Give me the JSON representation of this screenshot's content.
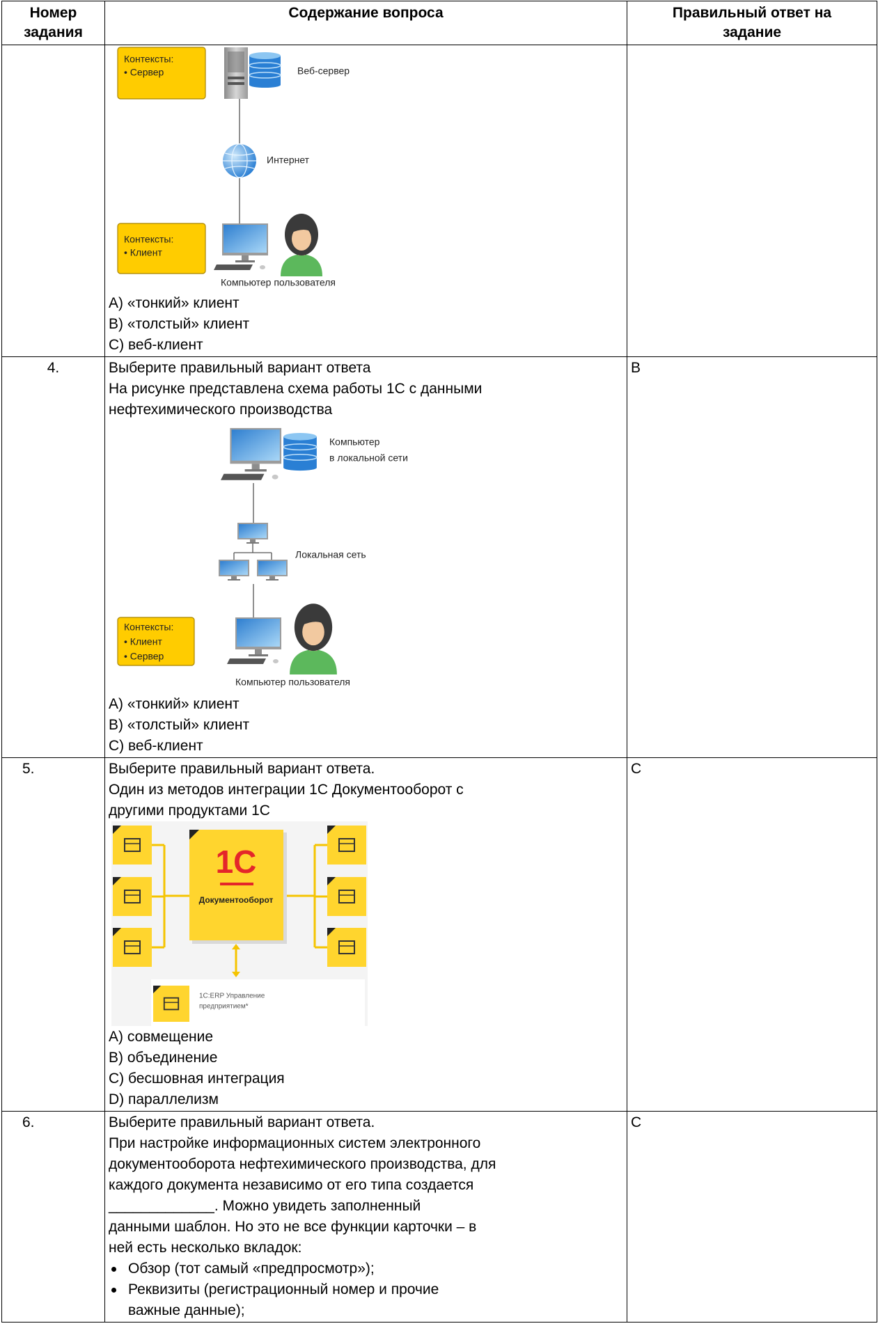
{
  "table": {
    "header": [
      [
        "Номер",
        "задания"
      ],
      [
        "Содержание вопроса"
      ],
      [
        "Правильный ответ на",
        "задание"
      ]
    ],
    "rows": [
      {
        "figure": {
          "context_server": [
            "Контексты:",
            "• Сервер"
          ],
          "server_label": "Веб-сервер",
          "network_label": "Интернет",
          "context_client": [
            "Контексты:",
            "• Клиент"
          ],
          "user_label": "Компьютер пользователя"
        },
        "options": [
          "A) «тонкий» клиент",
          "B) «толстый» клиент",
          "C) веб-клиент"
        ]
      },
      {
        "number": "4.",
        "question": [
          "Выберите правильный вариант ответа",
          "На рисунке представлена схема работы 1С с данными",
          "нефтехимического производства"
        ],
        "figure": {
          "server_label": [
            "Компьютер",
            "в локальной сети"
          ],
          "network_label": "Локальная сеть",
          "context": [
            "Контексты:",
            "• Клиент",
            "• Сервер"
          ],
          "user_label": "Компьютер пользователя"
        },
        "options": [
          "A) «тонкий» клиент",
          "B) «толстый» клиент",
          "C) веб-клиент"
        ],
        "answer": "B"
      },
      {
        "number": "5.",
        "question": [
          "Выберите правильный вариант ответа.",
          "Один из методов интеграции 1С Документооборот с",
          "другими продуктами 1С"
        ],
        "figure": {
          "logo": "1С",
          "title": "Документооборот",
          "bottom_label": [
            "1С:ERP Управление",
            "предприятием*"
          ]
        },
        "options": [
          "A) совмещение",
          "B) объединение",
          "C) бесшовная интеграция",
          "D) параллелизм"
        ],
        "answer": "C"
      },
      {
        "number": "6.",
        "question": [
          "Выберите правильный вариант ответа.",
          "При настройке информационных систем электронного",
          "документооборота нефтехимического производства, для",
          "каждого документа независимо от его типа создается",
          "_____________. Можно увидеть заполненный",
          "данными шаблон. Но это не все функции карточки – в",
          "ней есть несколько вкладок:"
        ],
        "bullets": [
          [
            "Обзор (тот самый «предпросмотр»);"
          ],
          [
            "Реквизиты (регистрационный номер и прочие",
            "важные данные);"
          ]
        ],
        "answer": "C"
      }
    ]
  }
}
